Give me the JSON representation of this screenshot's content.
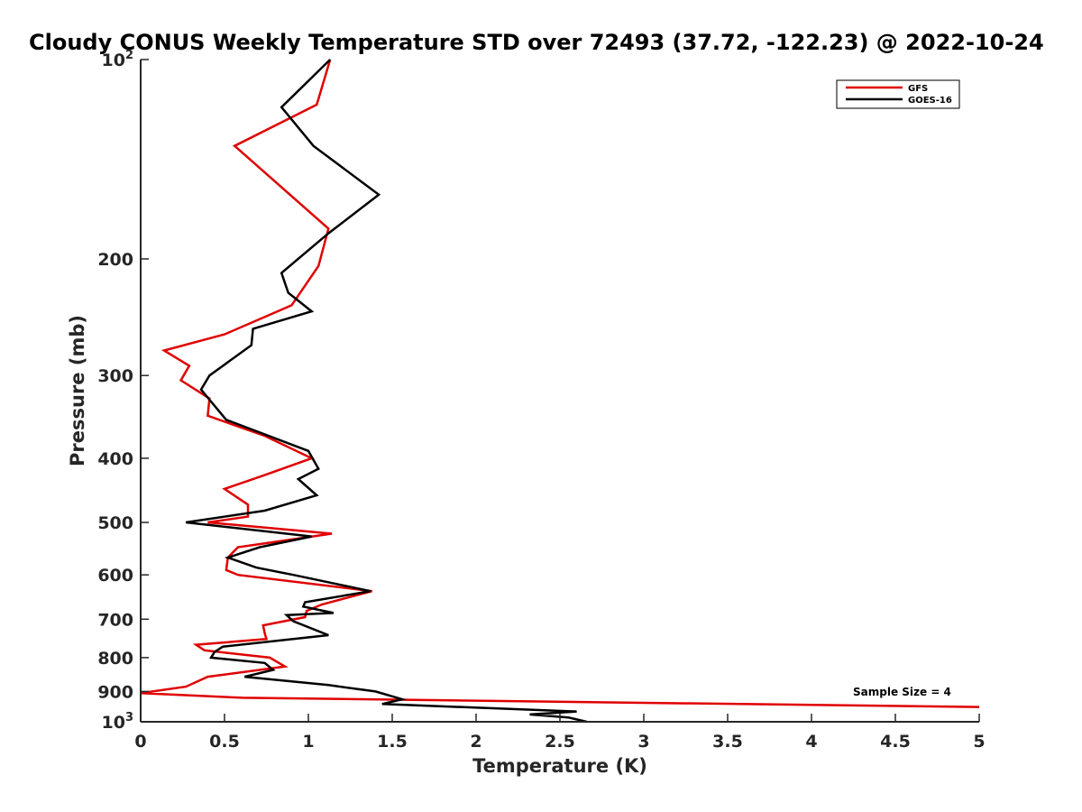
{
  "chart_data": {
    "type": "line",
    "title": "Cloudy CONUS Weekly Temperature STD over 72493 (37.72, -122.23) @ 2022-10-24",
    "xlabel": "Temperature (K)",
    "ylabel": "Pressure (mb)",
    "xlim": [
      0,
      5
    ],
    "ylim": [
      100,
      1000
    ],
    "y_scale": "log",
    "y_reversed": true,
    "grid": false,
    "legend_position": "top-right",
    "x_ticks": [
      {
        "value": 0,
        "label": "0"
      },
      {
        "value": 0.5,
        "label": "0.5"
      },
      {
        "value": 1,
        "label": "1"
      },
      {
        "value": 1.5,
        "label": "1.5"
      },
      {
        "value": 2,
        "label": "2"
      },
      {
        "value": 2.5,
        "label": "2.5"
      },
      {
        "value": 3,
        "label": "3"
      },
      {
        "value": 3.5,
        "label": "3.5"
      },
      {
        "value": 4,
        "label": "4"
      },
      {
        "value": 4.5,
        "label": "4.5"
      },
      {
        "value": 5,
        "label": "5"
      }
    ],
    "y_ticks": [
      {
        "value": 100,
        "base": "10",
        "exp": "2"
      },
      {
        "value": 200,
        "label": "200"
      },
      {
        "value": 300,
        "label": "300"
      },
      {
        "value": 400,
        "label": "400"
      },
      {
        "value": 500,
        "label": "500"
      },
      {
        "value": 600,
        "label": "600"
      },
      {
        "value": 700,
        "label": "700"
      },
      {
        "value": 800,
        "label": "800"
      },
      {
        "value": 900,
        "label": "900"
      },
      {
        "value": 1000,
        "base": "10",
        "exp": "3"
      }
    ],
    "series": [
      {
        "name": "GFS",
        "color": "#e00000",
        "x": [
          1.13,
          1.05,
          0.56,
          1.12,
          1.06,
          0.9,
          0.5,
          0.14,
          0.29,
          0.24,
          0.41,
          0.4,
          0.74,
          1.02,
          0.73,
          0.5,
          0.64,
          0.64,
          0.4,
          1.14,
          0.58,
          0.52,
          0.51,
          0.58,
          1.38,
          1.08,
          0.99,
          0.98,
          0.73,
          0.74,
          0.75,
          0.33,
          0.38,
          0.77,
          0.86,
          0.4,
          0.27,
          0,
          0.61,
          5
        ],
        "y": [
          100,
          117,
          135,
          180,
          205,
          235,
          260,
          275,
          290,
          305,
          325,
          345,
          370,
          400,
          425,
          445,
          470,
          490,
          500,
          520,
          545,
          565,
          590,
          600,
          635,
          665,
          680,
          695,
          715,
          735,
          750,
          765,
          780,
          800,
          825,
          855,
          885,
          905,
          920,
          950
        ]
      },
      {
        "name": "GOES-16",
        "color": "#000000",
        "x": [
          1.13,
          0.84,
          1.03,
          1.42,
          1.12,
          0.84,
          0.88,
          1.02,
          0.67,
          0.66,
          0.41,
          0.36,
          0.51,
          1,
          1.06,
          0.94,
          1.05,
          0.74,
          0.27,
          1.02,
          0.71,
          0.52,
          0.69,
          0.91,
          1.37,
          0.98,
          0.97,
          1.15,
          0.87,
          0.91,
          1.12,
          0.49,
          0.44,
          0.42,
          0.74,
          0.79,
          0.62,
          1.12,
          1.4,
          1.56,
          1.44,
          2.6,
          2.32,
          2.55,
          2.66
        ],
        "y": [
          100,
          118,
          135,
          160,
          183,
          210,
          225,
          240,
          255,
          270,
          300,
          315,
          350,
          390,
          415,
          430,
          455,
          480,
          500,
          525,
          545,
          565,
          585,
          600,
          635,
          660,
          670,
          685,
          690,
          705,
          740,
          770,
          785,
          800,
          815,
          835,
          855,
          880,
          900,
          925,
          940,
          965,
          975,
          985,
          1000
        ]
      }
    ],
    "annotations": [
      "Sample Size = 4"
    ]
  }
}
